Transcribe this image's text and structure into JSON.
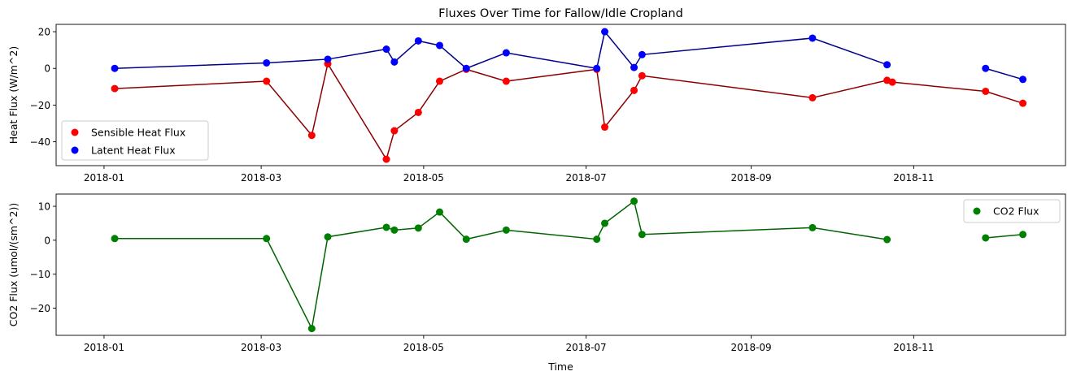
{
  "chart_data": [
    {
      "type": "line",
      "title": "Fluxes Over Time for Fallow/Idle Cropland",
      "xlabel": "",
      "ylabel": "Heat Flux (W/m^2)",
      "xlim": [
        "2017-12-14",
        "2018-12-28"
      ],
      "ylim": [
        -53,
        24
      ],
      "x_ticks": [
        "2018-01",
        "2018-03",
        "2018-05",
        "2018-07",
        "2018-09",
        "2018-11"
      ],
      "y_ticks": [
        20,
        0,
        -20,
        -40
      ],
      "legend": "lower-left",
      "series": [
        {
          "name": "Sensible Heat Flux",
          "point_color": "#ff0000",
          "line_color": "#8b0000",
          "points": [
            [
              "2018-01-05",
              -11
            ],
            [
              "2018-03-03",
              -7
            ],
            [
              "2018-03-20",
              -36.5
            ],
            [
              "2018-03-26",
              2.5
            ],
            [
              "2018-04-17",
              -49.5
            ],
            [
              "2018-04-20",
              -34
            ],
            [
              "2018-04-29",
              -24
            ],
            [
              "2018-05-07",
              -7
            ],
            [
              "2018-05-17",
              -0.5
            ],
            [
              "2018-06-01",
              -7
            ],
            [
              "2018-07-05",
              -0.5
            ],
            [
              "2018-07-08",
              -32
            ],
            [
              "2018-07-19",
              -12
            ],
            [
              "2018-07-22",
              -4
            ],
            [
              "2018-09-24",
              -16
            ],
            [
              "2018-10-22",
              -6.5
            ],
            [
              "2018-10-24",
              -7.5
            ],
            [
              "2018-11-28",
              -12.5
            ],
            [
              "2018-12-12",
              -19
            ]
          ],
          "segments": [
            [
              0,
              18
            ]
          ]
        },
        {
          "name": "Latent Heat Flux",
          "point_color": "#0000ff",
          "line_color": "#00008b",
          "points": [
            [
              "2018-01-05",
              0
            ],
            [
              "2018-03-03",
              3
            ],
            [
              "2018-03-26",
              5
            ],
            [
              "2018-04-17",
              10.5
            ],
            [
              "2018-04-20",
              3.5
            ],
            [
              "2018-04-29",
              15
            ],
            [
              "2018-05-07",
              12.5
            ],
            [
              "2018-05-17",
              0
            ],
            [
              "2018-06-01",
              8.5
            ],
            [
              "2018-07-05",
              0
            ],
            [
              "2018-07-08",
              20
            ],
            [
              "2018-07-19",
              0.5
            ],
            [
              "2018-07-22",
              7.5
            ],
            [
              "2018-09-24",
              16.5
            ],
            [
              "2018-10-22",
              2
            ],
            [
              "2018-11-28",
              0
            ],
            [
              "2018-12-12",
              -6
            ]
          ],
          "segments": [
            [
              0,
              14
            ],
            [
              15,
              16
            ]
          ]
        }
      ]
    },
    {
      "type": "line",
      "title": "",
      "xlabel": "Time",
      "ylabel": "CO2 Flux (umol/(sm^2))",
      "xlim": [
        "2017-12-14",
        "2018-12-28"
      ],
      "ylim": [
        -28,
        13.6
      ],
      "x_ticks": [
        "2018-01",
        "2018-03",
        "2018-05",
        "2018-07",
        "2018-09",
        "2018-11"
      ],
      "y_ticks": [
        10,
        0,
        -10,
        -20
      ],
      "legend": "upper-right",
      "series": [
        {
          "name": "CO2 Flux",
          "point_color": "#008000",
          "line_color": "#006400",
          "points": [
            [
              "2018-01-05",
              0.5
            ],
            [
              "2018-03-03",
              0.5
            ],
            [
              "2018-03-20",
              -26
            ],
            [
              "2018-03-26",
              1
            ],
            [
              "2018-04-17",
              3.8
            ],
            [
              "2018-04-20",
              3
            ],
            [
              "2018-04-29",
              3.6
            ],
            [
              "2018-05-07",
              8.3
            ],
            [
              "2018-05-17",
              0.3
            ],
            [
              "2018-06-01",
              3
            ],
            [
              "2018-07-05",
              0.3
            ],
            [
              "2018-07-08",
              5
            ],
            [
              "2018-07-19",
              11.5
            ],
            [
              "2018-07-22",
              1.7
            ],
            [
              "2018-09-24",
              3.7
            ],
            [
              "2018-10-22",
              0.2
            ],
            [
              "2018-11-28",
              0.7
            ],
            [
              "2018-12-12",
              1.7
            ]
          ],
          "segments": [
            [
              0,
              15
            ],
            [
              16,
              17
            ]
          ]
        }
      ]
    }
  ]
}
